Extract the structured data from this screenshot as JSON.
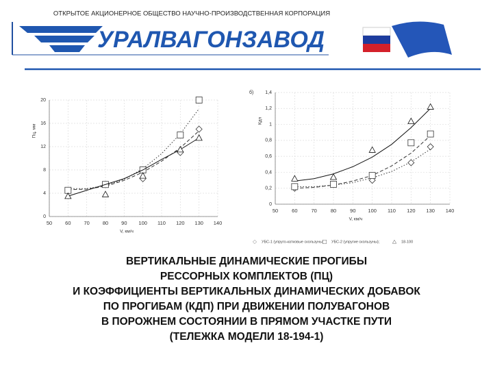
{
  "header": {
    "org": "ОТКРЫТОЕ АКЦИОНЕРНОЕ ОБЩЕСТВО НАУЧНО-ПРОИЗВОДСТВЕННАЯ КОРПОРАЦИЯ",
    "logo": "УРАЛВАГОНЗАВОД"
  },
  "caption": [
    "ВЕРТИКАЛЬНЫЕ ДИНАМИЧЕСКИЕ ПРОГИБЫ",
    "РЕССОРНЫХ КОМПЛЕКТОВ (ПЦ)",
    "И КОЭФФИЦИЕНТЫ ВЕРТИКАЛЬНЫХ ДИНАМИЧЕСКИХ ДОБАВОК",
    "ПО ПРОГИБАМ (КДП) ПРИ ДВИЖЕНИИ ПОЛУВАГОНОВ",
    "В ПОРОЖНЕМ СОСТОЯНИИ В ПРЯМОМ УЧАСТКЕ ПУТИ",
    "(ТЕЛЕЖКА МОДЕЛИ 18-194-1)"
  ],
  "chart_data": [
    {
      "type": "scatter",
      "y_label": "Пц, мм",
      "x_label": "V, км/ч",
      "x": [
        60,
        80,
        100,
        120,
        130
      ],
      "trend_x": [
        60,
        70,
        80,
        90,
        100,
        110,
        120,
        130
      ],
      "xlim": [
        50,
        140
      ],
      "xticks": [
        50,
        60,
        70,
        80,
        90,
        100,
        110,
        120,
        130,
        140
      ],
      "ylim": [
        0,
        20
      ],
      "yticks": [
        0,
        4,
        8,
        12,
        16,
        20
      ],
      "grid": true,
      "series": [
        {
          "marker": "diamond",
          "dash": "dashed",
          "color": "#333333",
          "values": [
            4.5,
            5.5,
            6.5,
            11,
            15
          ],
          "trend": [
            4.6,
            4.7,
            5.2,
            6.2,
            7.6,
            9.5,
            11.8,
            14.7
          ]
        },
        {
          "marker": "square",
          "dash": "dotted",
          "color": "#333333",
          "values": [
            4.5,
            5.5,
            8,
            14,
            20
          ],
          "trend": [
            4.8,
            4.8,
            5.3,
            6.4,
            8.2,
            10.8,
            14.2,
            18.5
          ]
        },
        {
          "marker": "triangle",
          "dash": "solid",
          "color": "#111111",
          "values": [
            3.5,
            3.8,
            7,
            11.5,
            13.5
          ],
          "trend": [
            3.5,
            4.5,
            5.5,
            6.5,
            8,
            9.8,
            11.5,
            13.5
          ]
        }
      ]
    },
    {
      "type": "scatter",
      "panel": "б)",
      "y_label": "Кдп",
      "x_label": "V, км/ч",
      "x": [
        60,
        80,
        100,
        120,
        130
      ],
      "trend_x": [
        60,
        70,
        80,
        90,
        100,
        110,
        120,
        130
      ],
      "xlim": [
        50,
        140
      ],
      "xticks": [
        50,
        60,
        70,
        80,
        90,
        100,
        110,
        120,
        130,
        140
      ],
      "ylim": [
        0,
        1.4
      ],
      "yticks": [
        0,
        {
          "value": 0.2,
          "label": "0,2"
        },
        {
          "value": 0.4,
          "label": "0,4"
        },
        {
          "value": 0.6,
          "label": "0,6"
        },
        {
          "value": 0.8,
          "label": "0,8"
        },
        1,
        {
          "value": 1.2,
          "label": "1,2"
        },
        {
          "value": 1.4,
          "label": "1,4"
        }
      ],
      "grid": true,
      "series": [
        {
          "name": "УБС-1 (упруго-катковые скользуны);",
          "marker": "diamond",
          "dash": "dotted",
          "color": "#333333",
          "values": [
            0.2,
            0.25,
            0.3,
            0.52,
            0.72
          ],
          "trend": [
            0.22,
            0.22,
            0.24,
            0.27,
            0.33,
            0.41,
            0.53,
            0.69
          ]
        },
        {
          "name": "УБС-2 (упругие скользуны);",
          "marker": "square",
          "dash": "dashed",
          "color": "#333333",
          "values": [
            0.22,
            0.25,
            0.36,
            0.77,
            0.88
          ],
          "trend": [
            0.2,
            0.21,
            0.24,
            0.29,
            0.36,
            0.48,
            0.64,
            0.86
          ]
        },
        {
          "name": "18-100",
          "marker": "triangle",
          "dash": "solid",
          "color": "#111111",
          "values": [
            0.32,
            0.34,
            0.68,
            1.04,
            1.22
          ],
          "trend": [
            0.29,
            0.32,
            0.38,
            0.47,
            0.59,
            0.75,
            0.96,
            1.2
          ]
        }
      ]
    }
  ]
}
